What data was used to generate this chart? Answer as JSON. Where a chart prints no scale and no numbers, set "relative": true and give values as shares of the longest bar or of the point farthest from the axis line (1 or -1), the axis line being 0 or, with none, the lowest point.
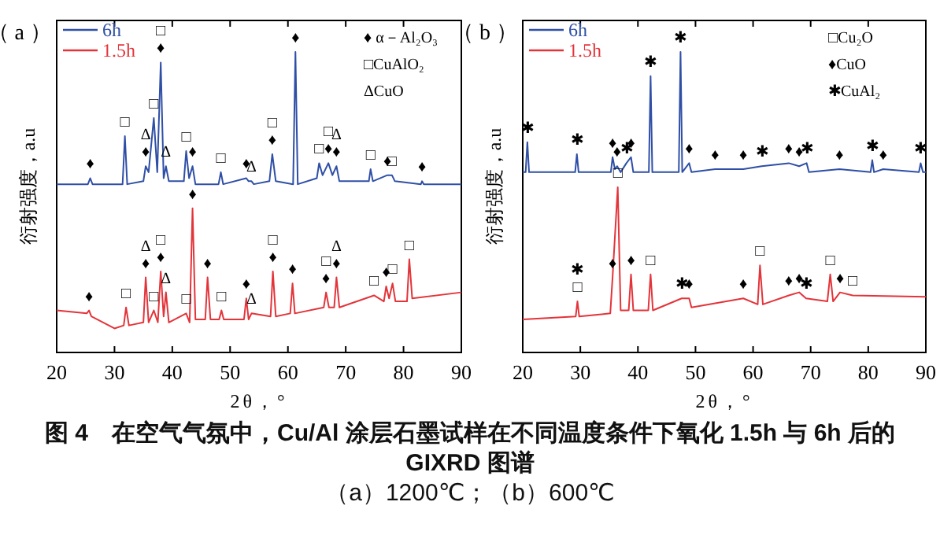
{
  "chart_data": [
    {
      "type": "line",
      "title": "（ a ）",
      "xlabel": "2θ，°",
      "ylabel": "衍射强度，a.u",
      "relative": true,
      "xlim": [
        20,
        90
      ],
      "xticks": [
        20,
        30,
        40,
        50,
        60,
        70,
        80,
        90
      ],
      "legend": "top left",
      "series": [
        {
          "name": "6h",
          "color": "#2f4fa6",
          "x": [
            20,
            25.4,
            25.8,
            26.2,
            31.4,
            31.8,
            32.2,
            35.0,
            35.4,
            35.9,
            36.8,
            37.4,
            38.0,
            38.5,
            38.9,
            39.4,
            42.0,
            42.4,
            42.9,
            43.5,
            44.0,
            48.0,
            48.4,
            48.8,
            52.8,
            53.2,
            53.7,
            54.1,
            56.8,
            57.3,
            57.9,
            60.9,
            61.3,
            61.7,
            65.0,
            65.4,
            66.0,
            67.0,
            67.7,
            68.4,
            68.9,
            74.0,
            74.3,
            74.7,
            77.2,
            78.0,
            78.5,
            83.0,
            83.2,
            83.5,
            90
          ],
          "values": [
            0.56,
            0.56,
            0.58,
            0.56,
            0.56,
            0.72,
            0.56,
            0.57,
            0.62,
            0.6,
            0.78,
            0.6,
            0.965,
            0.58,
            0.62,
            0.57,
            0.57,
            0.67,
            0.58,
            0.62,
            0.56,
            0.56,
            0.6,
            0.56,
            0.58,
            0.57,
            0.57,
            0.56,
            0.57,
            0.66,
            0.57,
            0.56,
            1.0,
            0.56,
            0.58,
            0.63,
            0.59,
            0.63,
            0.59,
            0.62,
            0.57,
            0.57,
            0.61,
            0.57,
            0.59,
            0.59,
            0.57,
            0.56,
            0.57,
            0.56,
            0.56
          ]
        },
        {
          "name": "1.5h",
          "color": "#e3343a",
          "x": [
            20,
            25.2,
            25.6,
            26.0,
            30,
            31.6,
            32.0,
            32.5,
            35.0,
            35.4,
            35.9,
            36.8,
            37.5,
            38.0,
            38.5,
            38.9,
            39.4,
            42.4,
            43.0,
            43.5,
            44.0,
            45.7,
            46.1,
            46.6,
            48.1,
            48.5,
            48.9,
            52.4,
            52.8,
            53.2,
            53.7,
            57.0,
            57.4,
            57.9,
            60.4,
            60.8,
            61.2,
            66.2,
            66.6,
            67.1,
            68.0,
            68.4,
            68.9,
            74.9,
            76.6,
            77.0,
            77.5,
            78.1,
            78.6,
            80.6,
            81.0,
            81.5,
            90
          ],
          "values": [
            0.14,
            0.13,
            0.14,
            0.12,
            0.08,
            0.09,
            0.15,
            0.09,
            0.1,
            0.25,
            0.1,
            0.14,
            0.1,
            0.27,
            0.12,
            0.2,
            0.1,
            0.13,
            0.1,
            0.48,
            0.11,
            0.11,
            0.25,
            0.11,
            0.11,
            0.14,
            0.11,
            0.11,
            0.18,
            0.11,
            0.13,
            0.12,
            0.27,
            0.12,
            0.13,
            0.23,
            0.13,
            0.15,
            0.2,
            0.15,
            0.15,
            0.25,
            0.15,
            0.19,
            0.17,
            0.22,
            0.18,
            0.23,
            0.17,
            0.17,
            0.31,
            0.18,
            0.2
          ]
        }
      ],
      "annotations": [
        "♦ α－Al₂O₃",
        "□CuAlO₂",
        "ΔCuO",
        {
          "text": "♦",
          "x": 25.8,
          "y": 0.58
        },
        {
          "text": "□",
          "x": 31.8,
          "y": 0.72
        },
        {
          "text": "♦",
          "x": 35.4,
          "y": 0.62
        },
        {
          "text": "Δ",
          "x": 35.4,
          "y": 0.62
        },
        {
          "text": "□",
          "x": 36.8,
          "y": 0.78
        },
        {
          "text": "♦",
          "x": 38.0,
          "y": 0.965
        },
        {
          "text": "□",
          "x": 38.0,
          "y": 0.965
        },
        {
          "text": "Δ",
          "x": 38.9,
          "y": 0.62
        },
        {
          "text": "□",
          "x": 42.4,
          "y": 0.67
        },
        {
          "text": "♦",
          "x": 43.5,
          "y": 0.62
        },
        {
          "text": "□",
          "x": 48.4,
          "y": 0.6
        },
        {
          "text": "♦",
          "x": 52.8,
          "y": 0.58
        },
        {
          "text": "Δ",
          "x": 53.7,
          "y": 0.57
        },
        {
          "text": "♦",
          "x": 57.3,
          "y": 0.66
        },
        {
          "text": "□",
          "x": 57.3,
          "y": 0.66
        },
        {
          "text": "♦",
          "x": 61.3,
          "y": 1.0
        },
        {
          "text": "□",
          "x": 65.4,
          "y": 0.63
        },
        {
          "text": "♦",
          "x": 67.0,
          "y": 0.63
        },
        {
          "text": "□",
          "x": 67.0,
          "y": 0.63
        },
        {
          "text": "♦",
          "x": 68.4,
          "y": 0.62
        },
        {
          "text": "Δ",
          "x": 68.4,
          "y": 0.62
        },
        {
          "text": "□",
          "x": 74.3,
          "y": 0.61
        },
        {
          "text": "♦",
          "x": 77.2,
          "y": 0.59
        },
        {
          "text": "□",
          "x": 78.0,
          "y": 0.59
        },
        {
          "text": "♦",
          "x": 83.2,
          "y": 0.57
        },
        {
          "text": "♦",
          "x": 25.6,
          "y": 0.14
        },
        {
          "text": "□",
          "x": 32.0,
          "y": 0.15
        },
        {
          "text": "♦",
          "x": 35.4,
          "y": 0.25
        },
        {
          "text": "Δ",
          "x": 35.4,
          "y": 0.25
        },
        {
          "text": "□",
          "x": 36.8,
          "y": 0.14
        },
        {
          "text": "♦",
          "x": 38.0,
          "y": 0.27
        },
        {
          "text": "□",
          "x": 38.0,
          "y": 0.27
        },
        {
          "text": "Δ",
          "x": 38.9,
          "y": 0.2
        },
        {
          "text": "□",
          "x": 42.4,
          "y": 0.13
        },
        {
          "text": "♦",
          "x": 43.5,
          "y": 0.48
        },
        {
          "text": "♦",
          "x": 46.1,
          "y": 0.25
        },
        {
          "text": "□",
          "x": 48.5,
          "y": 0.14
        },
        {
          "text": "♦",
          "x": 52.8,
          "y": 0.18
        },
        {
          "text": "Δ",
          "x": 53.7,
          "y": 0.13
        },
        {
          "text": "♦",
          "x": 57.4,
          "y": 0.27
        },
        {
          "text": "□",
          "x": 57.4,
          "y": 0.27
        },
        {
          "text": "♦",
          "x": 60.8,
          "y": 0.23
        },
        {
          "text": "♦",
          "x": 66.6,
          "y": 0.2
        },
        {
          "text": "□",
          "x": 66.6,
          "y": 0.2
        },
        {
          "text": "♦",
          "x": 68.4,
          "y": 0.25
        },
        {
          "text": "Δ",
          "x": 68.4,
          "y": 0.25
        },
        {
          "text": "□",
          "x": 74.9,
          "y": 0.19
        },
        {
          "text": "♦",
          "x": 77.0,
          "y": 0.22
        },
        {
          "text": "□",
          "x": 78.1,
          "y": 0.23
        },
        {
          "text": "□",
          "x": 81.0,
          "y": 0.31
        }
      ]
    },
    {
      "type": "line",
      "title": "（ b ）",
      "xlabel": "2θ，°",
      "ylabel": "衍射强度，a.u",
      "relative": true,
      "xlim": [
        20,
        90
      ],
      "xticks": [
        20,
        30,
        40,
        50,
        60,
        70,
        80,
        90
      ],
      "legend": "top left",
      "series": [
        {
          "name": "6h",
          "color": "#2f4fa6",
          "x": [
            20,
            20.5,
            20.8,
            21.1,
            29.1,
            29.4,
            29.7,
            35.3,
            35.6,
            36.0,
            36.4,
            37.0,
            38.0,
            38.8,
            39.2,
            41.9,
            42.2,
            42.5,
            47.1,
            47.4,
            47.7,
            48.9,
            49.3,
            53.4,
            58.3,
            61.5,
            66.2,
            68.0,
            69.3,
            69.7,
            75.0,
            80.4,
            80.7,
            81.0,
            82.6,
            88.8,
            89.1,
            89.5,
            90
          ],
          "values": [
            0.6,
            0.6,
            0.7,
            0.6,
            0.6,
            0.66,
            0.6,
            0.6,
            0.65,
            0.61,
            0.62,
            0.6,
            0.63,
            0.65,
            0.6,
            0.6,
            0.92,
            0.6,
            0.6,
            1.0,
            0.6,
            0.63,
            0.6,
            0.61,
            0.61,
            0.62,
            0.63,
            0.62,
            0.63,
            0.6,
            0.61,
            0.6,
            0.64,
            0.6,
            0.61,
            0.6,
            0.63,
            0.6,
            0.6
          ]
        },
        {
          "name": "1.5h",
          "color": "#e3343a",
          "x": [
            20,
            29.2,
            29.5,
            29.8,
            35.2,
            35.6,
            36.5,
            37.0,
            38.4,
            38.8,
            39.2,
            41.8,
            42.2,
            42.6,
            47.6,
            48.9,
            49.3,
            58.3,
            60.8,
            61.2,
            61.7,
            66.2,
            68.0,
            69.2,
            72.9,
            73.4,
            73.9,
            75.1,
            77.3,
            90
          ],
          "values": [
            0.11,
            0.12,
            0.17,
            0.12,
            0.13,
            0.25,
            0.55,
            0.14,
            0.14,
            0.26,
            0.14,
            0.14,
            0.26,
            0.14,
            0.18,
            0.18,
            0.15,
            0.18,
            0.16,
            0.29,
            0.16,
            0.19,
            0.2,
            0.18,
            0.17,
            0.26,
            0.17,
            0.2,
            0.19,
            0.185
          ]
        }
      ],
      "annotations": [
        "□Cu₂O",
        "♦CuO",
        "✱CuAl₂",
        {
          "text": "✱",
          "x": 20.8,
          "y": 0.7
        },
        {
          "text": "✱",
          "x": 29.4,
          "y": 0.66
        },
        {
          "text": "♦",
          "x": 35.6,
          "y": 0.65
        },
        {
          "text": "♦",
          "x": 36.4,
          "y": 0.62
        },
        {
          "text": "✱",
          "x": 38.0,
          "y": 0.63
        },
        {
          "text": "♦",
          "x": 38.8,
          "y": 0.65
        },
        {
          "text": "✱",
          "x": 42.2,
          "y": 0.92
        },
        {
          "text": "✱",
          "x": 47.4,
          "y": 1.0
        },
        {
          "text": "♦",
          "x": 48.9,
          "y": 0.63
        },
        {
          "text": "♦",
          "x": 53.4,
          "y": 0.61
        },
        {
          "text": "♦",
          "x": 58.3,
          "y": 0.61
        },
        {
          "text": "✱",
          "x": 61.5,
          "y": 0.62
        },
        {
          "text": "♦",
          "x": 66.2,
          "y": 0.63
        },
        {
          "text": "♦",
          "x": 68.0,
          "y": 0.62
        },
        {
          "text": "✱",
          "x": 69.3,
          "y": 0.63
        },
        {
          "text": "♦",
          "x": 75.0,
          "y": 0.61
        },
        {
          "text": "✱",
          "x": 80.7,
          "y": 0.64
        },
        {
          "text": "♦",
          "x": 82.6,
          "y": 0.61
        },
        {
          "text": "✱",
          "x": 89.1,
          "y": 0.63
        },
        {
          "text": "□",
          "x": 29.5,
          "y": 0.17
        },
        {
          "text": "✱",
          "x": 29.5,
          "y": 0.17
        },
        {
          "text": "♦",
          "x": 35.6,
          "y": 0.25
        },
        {
          "text": "□",
          "x": 36.5,
          "y": 0.55
        },
        {
          "text": "♦",
          "x": 38.8,
          "y": 0.26
        },
        {
          "text": "□",
          "x": 42.2,
          "y": 0.26
        },
        {
          "text": "✱",
          "x": 47.6,
          "y": 0.18
        },
        {
          "text": "♦",
          "x": 48.9,
          "y": 0.18
        },
        {
          "text": "♦",
          "x": 58.3,
          "y": 0.18
        },
        {
          "text": "□",
          "x": 61.2,
          "y": 0.29
        },
        {
          "text": "♦",
          "x": 66.2,
          "y": 0.19
        },
        {
          "text": "♦",
          "x": 68.0,
          "y": 0.2
        },
        {
          "text": "✱",
          "x": 69.2,
          "y": 0.18
        },
        {
          "text": "□",
          "x": 73.4,
          "y": 0.26
        },
        {
          "text": "♦",
          "x": 75.1,
          "y": 0.2
        },
        {
          "text": "□",
          "x": 77.3,
          "y": 0.19
        }
      ]
    },
    {
      "type": "other",
      "title": "图 4　在空气气氛中，Cu/Al 涂层石墨试样在不同温度条件下氧化 1.5h 与 6h 后的 GIXRD 图谱",
      "subtitle": "（a）1200℃；（b）600℃"
    }
  ]
}
